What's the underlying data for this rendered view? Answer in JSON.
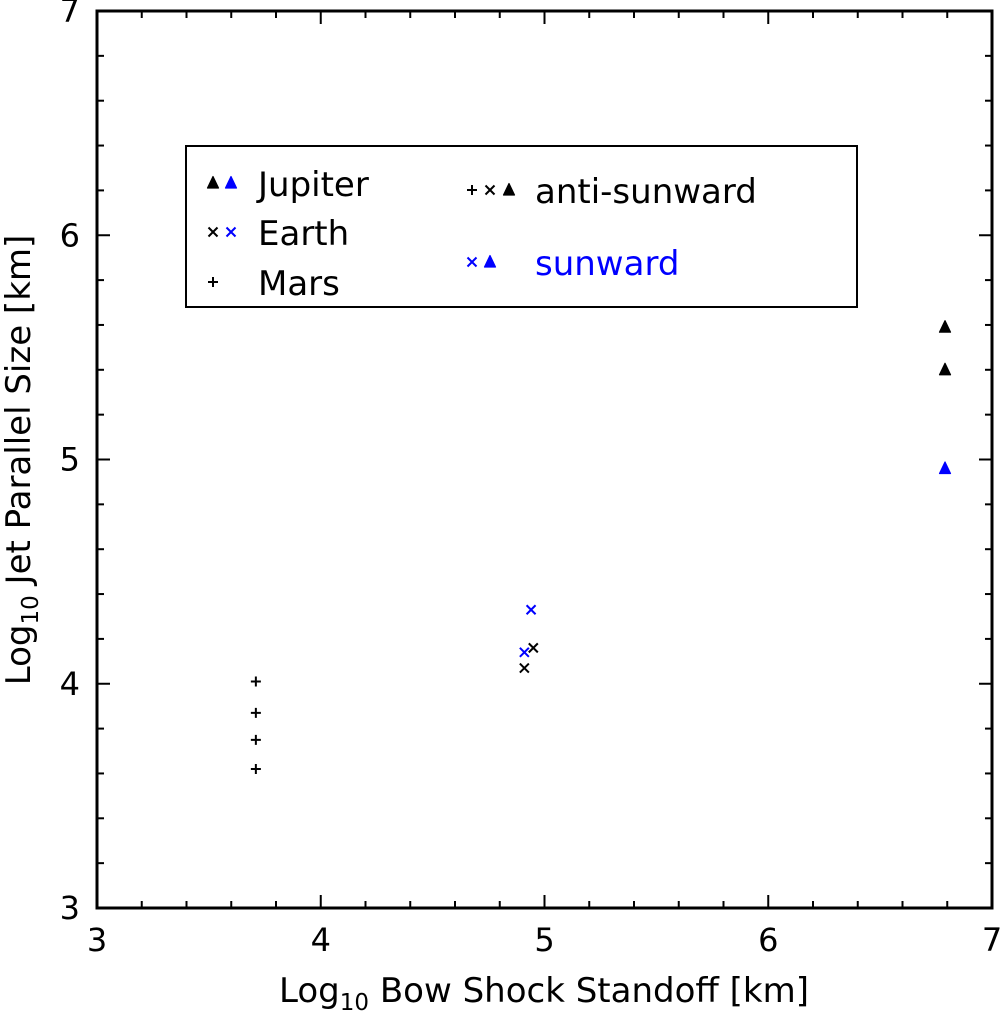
{
  "chart_data": {
    "type": "scatter",
    "xlabel": {
      "prefix": "Log",
      "sub": "10",
      "suffix": " Bow Shock Standoff [km]"
    },
    "ylabel": {
      "prefix": "Log",
      "sub": "10",
      "suffix": " Jet Parallel Size [km]"
    },
    "xlim": [
      3,
      7
    ],
    "ylim": [
      3,
      7
    ],
    "xticks": [
      3,
      4,
      5,
      6,
      7
    ],
    "yticks": [
      3,
      4,
      5,
      6,
      7
    ],
    "x_tick_labels": [
      "3",
      "4",
      "5",
      "6",
      "7"
    ],
    "y_tick_labels": [
      "3",
      "4",
      "5",
      "6",
      "7"
    ],
    "grid": false,
    "legend_placement": "upper-left",
    "colors": {
      "anti_sunward": "#000000",
      "sunward": "#0000ff"
    },
    "markers": {
      "Jupiter": "triangle",
      "Earth": "x",
      "Mars": "plus"
    },
    "legend": {
      "planets": [
        {
          "label": "Jupiter",
          "marker": "triangle"
        },
        {
          "label": "Earth",
          "marker": "x"
        },
        {
          "label": "Mars",
          "marker": "plus"
        }
      ],
      "directions": [
        {
          "label": "anti-sunward",
          "color": "#000000",
          "markers": [
            "plus",
            "x",
            "triangle"
          ]
        },
        {
          "label": "sunward",
          "color": "#0000ff",
          "markers": [
            "x",
            "triangle"
          ]
        }
      ]
    },
    "points": [
      {
        "planet": "Mars",
        "direction": "anti-sunward",
        "x": 3.71,
        "y": 4.01
      },
      {
        "planet": "Mars",
        "direction": "anti-sunward",
        "x": 3.71,
        "y": 3.87
      },
      {
        "planet": "Mars",
        "direction": "anti-sunward",
        "x": 3.71,
        "y": 3.75
      },
      {
        "planet": "Mars",
        "direction": "anti-sunward",
        "x": 3.71,
        "y": 3.62
      },
      {
        "planet": "Earth",
        "direction": "anti-sunward",
        "x": 4.91,
        "y": 4.07
      },
      {
        "planet": "Earth",
        "direction": "anti-sunward",
        "x": 4.95,
        "y": 4.16
      },
      {
        "planet": "Earth",
        "direction": "sunward",
        "x": 4.91,
        "y": 4.14
      },
      {
        "planet": "Earth",
        "direction": "sunward",
        "x": 4.94,
        "y": 4.33
      },
      {
        "planet": "Jupiter",
        "direction": "anti-sunward",
        "x": 6.79,
        "y": 5.59
      },
      {
        "planet": "Jupiter",
        "direction": "anti-sunward",
        "x": 6.79,
        "y": 5.4
      },
      {
        "planet": "Jupiter",
        "direction": "sunward",
        "x": 6.79,
        "y": 4.96
      }
    ]
  }
}
